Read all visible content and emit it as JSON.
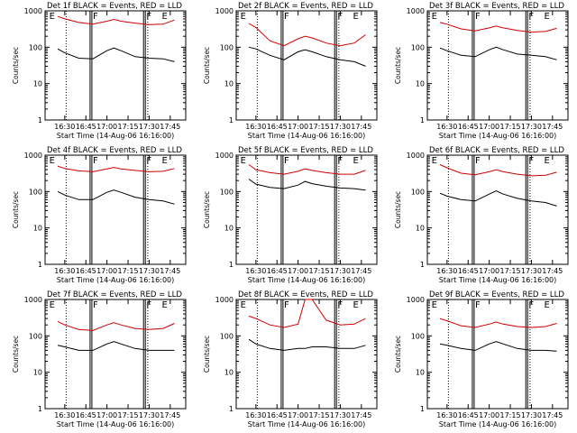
{
  "start_time_label": "Start Time (14-Aug-06 16:16:00)",
  "ylabel": "Counts/sec",
  "x_ticks": [
    "16:30",
    "16:45",
    "17:00",
    "17:15",
    "17:30",
    "17:45"
  ],
  "y_ticks": [
    "1000",
    "100",
    "10",
    "1"
  ],
  "flag_letters": [
    "E",
    "F",
    "F",
    "E"
  ],
  "colors": {
    "events": "#000000",
    "lld": "#d00000",
    "axes": "#000000"
  },
  "chart_data": [
    {
      "type": "line",
      "title": "Det 1f BLACK = Events, RED = LLD",
      "xlabel": "Start Time (14-Aug-06 16:16:00)",
      "ylabel": "Counts/sec",
      "xlim": [
        "16:16",
        "17:56"
      ],
      "ylim": [
        1,
        1000
      ],
      "ylog": true,
      "x": [
        "16:25",
        "16:30",
        "16:40",
        "16:50",
        "17:00",
        "17:05",
        "17:10",
        "17:20",
        "17:30",
        "17:40",
        "17:48"
      ],
      "series": [
        {
          "name": "Events",
          "color": "black",
          "values": [
            90,
            70,
            50,
            48,
            80,
            95,
            80,
            55,
            50,
            48,
            40
          ]
        },
        {
          "name": "LLD",
          "color": "red",
          "values": [
            700,
            600,
            480,
            430,
            520,
            580,
            520,
            460,
            420,
            430,
            560
          ]
        }
      ]
    },
    {
      "type": "line",
      "title": "Det 2f BLACK = Events, RED = LLD",
      "xlabel": "Start Time (14-Aug-06 16:16:00)",
      "ylabel": "Counts/sec",
      "xlim": [
        "16:16",
        "17:56"
      ],
      "ylim": [
        1,
        1000
      ],
      "ylog": true,
      "x": [
        "16:25",
        "16:30",
        "16:40",
        "16:50",
        "17:00",
        "17:05",
        "17:10",
        "17:20",
        "17:30",
        "17:40",
        "17:48"
      ],
      "series": [
        {
          "name": "Events",
          "color": "black",
          "values": [
            100,
            90,
            60,
            45,
            75,
            85,
            75,
            55,
            45,
            40,
            30
          ]
        },
        {
          "name": "LLD",
          "color": "red",
          "values": [
            450,
            350,
            150,
            110,
            170,
            200,
            180,
            130,
            110,
            130,
            220
          ]
        }
      ]
    },
    {
      "type": "line",
      "title": "Det 3f BLACK = Events, RED = LLD",
      "xlabel": "Start Time (14-Aug-06 16:16:00)",
      "ylabel": "Counts/sec",
      "xlim": [
        "16:16",
        "17:56"
      ],
      "ylim": [
        1,
        1000
      ],
      "ylog": true,
      "x": [
        "16:25",
        "16:30",
        "16:40",
        "16:50",
        "17:00",
        "17:05",
        "17:10",
        "17:20",
        "17:30",
        "17:40",
        "17:48"
      ],
      "series": [
        {
          "name": "Events",
          "color": "black",
          "values": [
            95,
            80,
            60,
            55,
            85,
            100,
            85,
            65,
            60,
            55,
            45
          ]
        },
        {
          "name": "LLD",
          "color": "red",
          "values": [
            480,
            430,
            320,
            280,
            340,
            380,
            340,
            290,
            260,
            270,
            330
          ]
        }
      ]
    },
    {
      "type": "line",
      "title": "Det 4f BLACK = Events, RED = LLD",
      "xlabel": "Start Time (14-Aug-06 16:16:00)",
      "ylabel": "Counts/sec",
      "xlim": [
        "16:16",
        "17:56"
      ],
      "ylim": [
        1,
        1000
      ],
      "ylog": true,
      "x": [
        "16:25",
        "16:30",
        "16:40",
        "16:50",
        "17:00",
        "17:05",
        "17:10",
        "17:20",
        "17:30",
        "17:40",
        "17:48"
      ],
      "series": [
        {
          "name": "Events",
          "color": "black",
          "values": [
            100,
            80,
            60,
            60,
            95,
            110,
            95,
            70,
            60,
            55,
            45
          ]
        },
        {
          "name": "LLD",
          "color": "red",
          "values": [
            500,
            430,
            370,
            350,
            420,
            460,
            420,
            380,
            350,
            360,
            430
          ]
        }
      ]
    },
    {
      "type": "line",
      "title": "Det 5f BLACK = Events, RED = LLD",
      "xlabel": "Start Time (14-Aug-06 16:16:00)",
      "ylabel": "Counts/sec",
      "xlim": [
        "16:16",
        "17:56"
      ],
      "ylim": [
        1,
        1000
      ],
      "ylog": true,
      "x": [
        "16:25",
        "16:30",
        "16:40",
        "16:50",
        "17:00",
        "17:05",
        "17:10",
        "17:20",
        "17:30",
        "17:40",
        "17:48"
      ],
      "series": [
        {
          "name": "Events",
          "color": "black",
          "values": [
            220,
            160,
            130,
            120,
            150,
            190,
            165,
            140,
            125,
            120,
            110
          ]
        },
        {
          "name": "LLD",
          "color": "red",
          "values": [
            550,
            400,
            330,
            300,
            360,
            420,
            380,
            330,
            300,
            300,
            380
          ]
        }
      ]
    },
    {
      "type": "line",
      "title": "Det 6f BLACK = Events, RED = LLD",
      "xlabel": "Start Time (14-Aug-06 16:16:00)",
      "ylabel": "Counts/sec",
      "xlim": [
        "16:16",
        "17:56"
      ],
      "ylim": [
        1,
        1000
      ],
      "ylog": true,
      "x": [
        "16:25",
        "16:30",
        "16:40",
        "16:50",
        "17:00",
        "17:05",
        "17:10",
        "17:20",
        "17:30",
        "17:40",
        "17:48"
      ],
      "series": [
        {
          "name": "Events",
          "color": "black",
          "values": [
            90,
            75,
            60,
            55,
            85,
            105,
            85,
            65,
            55,
            50,
            40
          ]
        },
        {
          "name": "LLD",
          "color": "red",
          "values": [
            550,
            450,
            320,
            290,
            350,
            400,
            350,
            300,
            270,
            280,
            340
          ]
        }
      ]
    },
    {
      "type": "line",
      "title": "Det 7f BLACK = Events, RED = LLD",
      "xlabel": "Start Time (14-Aug-06 16:16:00)",
      "ylabel": "Counts/sec",
      "xlim": [
        "16:16",
        "17:56"
      ],
      "ylim": [
        1,
        1000
      ],
      "ylog": true,
      "x": [
        "16:25",
        "16:30",
        "16:40",
        "16:50",
        "17:00",
        "17:05",
        "17:10",
        "17:20",
        "17:30",
        "17:40",
        "17:48"
      ],
      "series": [
        {
          "name": "Events",
          "color": "black",
          "values": [
            55,
            50,
            40,
            40,
            60,
            70,
            60,
            45,
            40,
            40,
            40
          ]
        },
        {
          "name": "LLD",
          "color": "red",
          "values": [
            250,
            200,
            150,
            140,
            200,
            230,
            200,
            160,
            150,
            160,
            220
          ]
        }
      ]
    },
    {
      "type": "line",
      "title": "Det 8f BLACK = Events, RED = LLD",
      "xlabel": "Start Time (14-Aug-06 16:16:00)",
      "ylabel": "Counts/sec",
      "xlim": [
        "16:16",
        "17:56"
      ],
      "ylim": [
        1,
        1000
      ],
      "ylog": true,
      "x": [
        "16:25",
        "16:30",
        "16:40",
        "16:50",
        "17:00",
        "17:05",
        "17:10",
        "17:20",
        "17:30",
        "17:40",
        "17:48"
      ],
      "series": [
        {
          "name": "Events",
          "color": "black",
          "values": [
            80,
            60,
            45,
            40,
            45,
            45,
            50,
            50,
            45,
            45,
            55
          ]
        },
        {
          "name": "LLD",
          "color": "red",
          "values": [
            350,
            300,
            200,
            170,
            210,
            1000,
            1000,
            270,
            200,
            210,
            300
          ]
        }
      ]
    },
    {
      "type": "line",
      "title": "Det 9f BLACK = Events, RED = LLD",
      "xlabel": "Start Time (14-Aug-06 16:16:00)",
      "ylabel": "Counts/sec",
      "xlim": [
        "16:16",
        "17:56"
      ],
      "ylim": [
        1,
        1000
      ],
      "ylog": true,
      "x": [
        "16:25",
        "16:30",
        "16:40",
        "16:50",
        "17:00",
        "17:05",
        "17:10",
        "17:20",
        "17:30",
        "17:40",
        "17:48"
      ],
      "series": [
        {
          "name": "Events",
          "color": "black",
          "values": [
            60,
            55,
            45,
            40,
            60,
            70,
            60,
            45,
            40,
            40,
            38
          ]
        },
        {
          "name": "LLD",
          "color": "red",
          "values": [
            300,
            260,
            190,
            170,
            210,
            240,
            210,
            180,
            170,
            180,
            220
          ]
        }
      ]
    }
  ]
}
